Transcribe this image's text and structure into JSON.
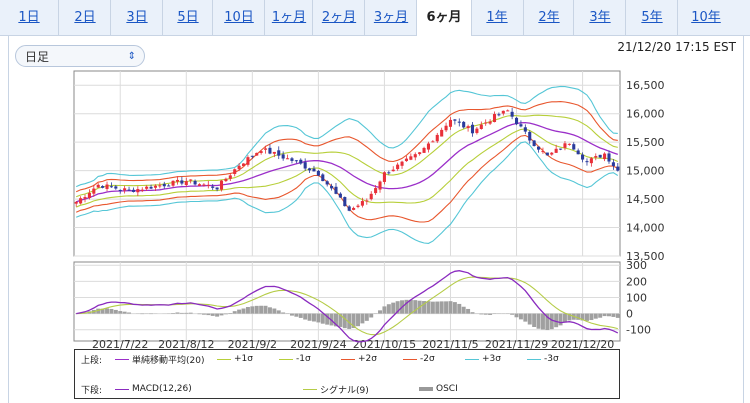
{
  "tabs": [
    {
      "label": "1日"
    },
    {
      "label": "2日"
    },
    {
      "label": "3日"
    },
    {
      "label": "5日"
    },
    {
      "label": "10日"
    },
    {
      "label": "1ヶ月"
    },
    {
      "label": "2ヶ月"
    },
    {
      "label": "3ヶ月"
    },
    {
      "label": "6ヶ月",
      "active": true
    },
    {
      "label": "1年"
    },
    {
      "label": "2年"
    },
    {
      "label": "3年"
    },
    {
      "label": "5年"
    },
    {
      "label": "10年"
    }
  ],
  "selector": {
    "value": "日足"
  },
  "timestamp": "21/12/20 17:15 EST",
  "colors": {
    "up": "#e8303a",
    "down": "#2a3b9c",
    "sma": "#9b2fc9",
    "sigma1": "#b7cf3a",
    "sigma2": "#e8572e",
    "sigma3": "#55c6d6",
    "macd": "#8a2bbf",
    "signal": "#b5cc47",
    "osci": "#a0a0a0"
  },
  "chart_data": {
    "type": "candlestick",
    "x_tick_labels": [
      "2021/7/22",
      "2021/8/12",
      "2021/9/2",
      "2021/9/24",
      "2021/10/15",
      "2021/11/5",
      "2021/11/29",
      "2021/12/20"
    ],
    "x_tick_index": [
      10,
      25,
      40,
      55,
      70,
      85,
      100,
      115
    ],
    "n_days": 124,
    "price": {
      "ylim": [
        13500,
        16750
      ],
      "y_ticks": [
        13500,
        14000,
        14500,
        15000,
        15500,
        16000,
        16500
      ],
      "y_tick_labels": [
        "13,500",
        "14,000",
        "14,500",
        "15,000",
        "15,500",
        "16,000",
        "16,500"
      ],
      "close_path": [
        [
          0,
          14450
        ],
        [
          5,
          14750
        ],
        [
          12,
          14650
        ],
        [
          25,
          14820
        ],
        [
          32,
          14700
        ],
        [
          37,
          15100
        ],
        [
          42,
          15380
        ],
        [
          50,
          15150
        ],
        [
          55,
          14950
        ],
        [
          62,
          14300
        ],
        [
          66,
          14480
        ],
        [
          70,
          14950
        ],
        [
          78,
          15300
        ],
        [
          85,
          15900
        ],
        [
          90,
          15700
        ],
        [
          95,
          15950
        ],
        [
          98,
          16050
        ],
        [
          103,
          15550
        ],
        [
          107,
          15250
        ],
        [
          112,
          15500
        ],
        [
          116,
          15150
        ],
        [
          120,
          15300
        ],
        [
          123,
          15000
        ]
      ],
      "bands": "Bollinger(20) ±1σ ±2σ ±3σ"
    },
    "macd": {
      "ylim": [
        -170,
        320
      ],
      "y_ticks": [
        300,
        200,
        100,
        0,
        -100
      ],
      "y_tick_labels": [
        "300",
        "200",
        "100",
        "0",
        "-100"
      ]
    }
  },
  "legend": {
    "upper_label": "上段:",
    "lower_label": "下段:",
    "upper": [
      {
        "label": "単純移動平均(20)",
        "color": "#9b2fc9"
      },
      {
        "label": "+1σ",
        "color": "#b7cf3a"
      },
      {
        "label": "-1σ",
        "color": "#b7cf3a"
      },
      {
        "label": "+2σ",
        "color": "#e8572e"
      },
      {
        "label": "-2σ",
        "color": "#e8572e"
      },
      {
        "label": "+3σ",
        "color": "#55c6d6"
      },
      {
        "label": "-3σ",
        "color": "#55c6d6"
      }
    ],
    "lower": [
      {
        "label": "MACD(12,26)",
        "color": "#8a2bbf"
      },
      {
        "label": "シグナル(9)",
        "color": "#b5cc47"
      },
      {
        "label": "OSCI",
        "color": "#a0a0a0"
      }
    ]
  }
}
